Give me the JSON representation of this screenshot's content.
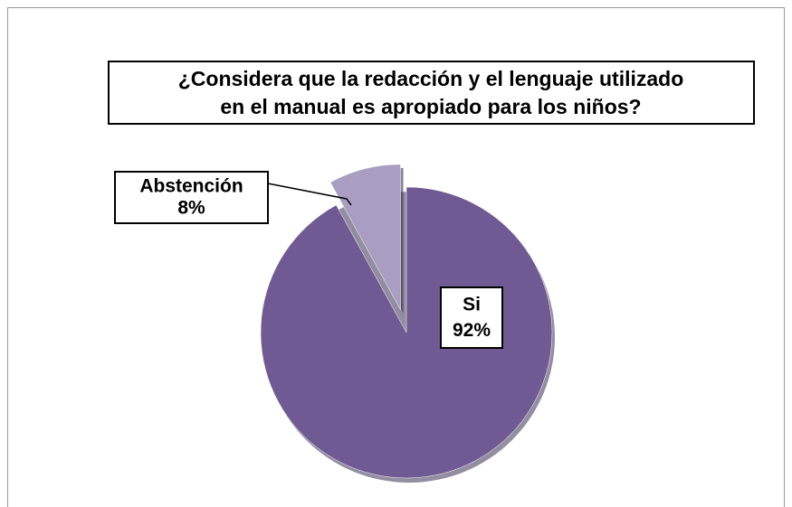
{
  "chart_data": {
    "type": "pie",
    "title": [
      "¿Considera que la redacción y el lenguaje utilizado",
      "en el manual es apropiado para los niños?"
    ],
    "categories": [
      "Si",
      "Abstención"
    ],
    "values": [
      92,
      8
    ],
    "value_labels": [
      "92%",
      "8%"
    ],
    "colors": [
      "#6f5a93",
      "#a99dc2"
    ]
  }
}
